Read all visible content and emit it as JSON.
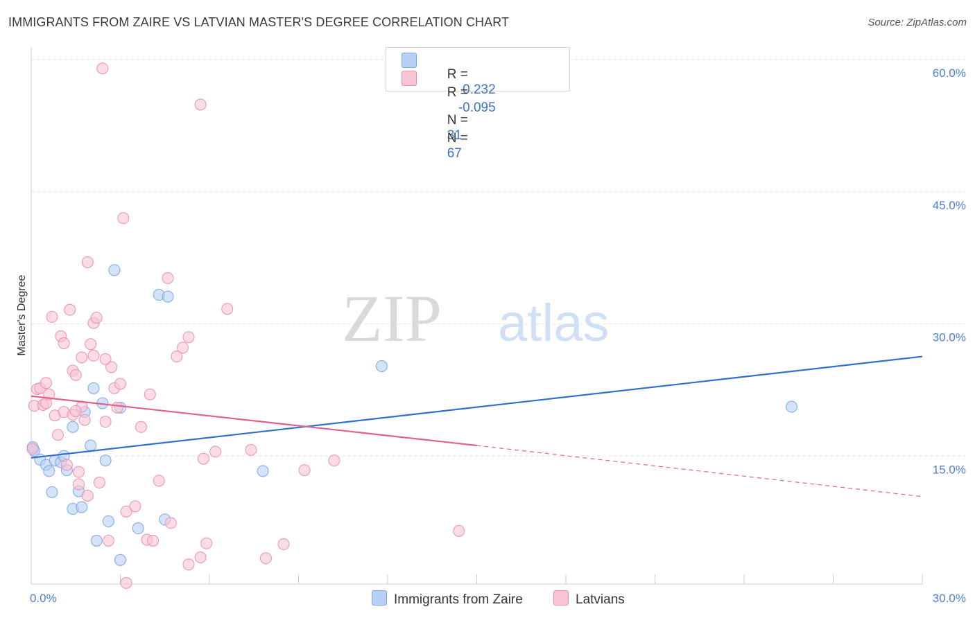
{
  "title": "IMMIGRANTS FROM ZAIRE VS LATVIAN MASTER'S DEGREE CORRELATION CHART",
  "source": "Source: ZipAtlas.com",
  "watermark": {
    "zip": "ZIP",
    "atlas": "atlas"
  },
  "legend_stats": [
    {
      "r_label": "R =",
      "r_value": "0.232",
      "n_label": "N =",
      "n_value": "31",
      "color": "#b7d0f5",
      "border": "#7aa6e6"
    },
    {
      "r_label": "R =",
      "r_value": "-0.095",
      "n_label": "N =",
      "n_value": "67",
      "color": "#f8c4d4",
      "border": "#ec8fae"
    }
  ],
  "bottom_legend": [
    {
      "label": "Immigrants from Zaire",
      "color": "#b7d0f5",
      "border": "#7aa6e6"
    },
    {
      "label": "Latvians",
      "color": "#f8c4d4",
      "border": "#ec8fae"
    }
  ],
  "chart_data": {
    "type": "scatter",
    "title": "IMMIGRANTS FROM ZAIRE VS LATVIAN MASTER'S DEGREE CORRELATION CHART",
    "xlabel": "",
    "ylabel": "Master's Degree",
    "xlim": [
      0,
      30
    ],
    "ylim": [
      0,
      60
    ],
    "x_tick_labels": [
      "0.0%",
      "30.0%"
    ],
    "y_ticks": [
      15,
      30,
      45,
      60
    ],
    "y_tick_labels": [
      "15.0%",
      "30.0%",
      "45.0%",
      "60.0%"
    ],
    "grid": true,
    "legend_position": "top-center",
    "series": [
      {
        "name": "Immigrants from Zaire",
        "color": "#7aa6e6",
        "fill": "#b7d0f5",
        "trend": {
          "x": [
            0,
            30
          ],
          "y": [
            14.8,
            26.3
          ],
          "color": "#2f6fce"
        },
        "points": [
          [
            0.1,
            15.6
          ],
          [
            0.3,
            14.6
          ],
          [
            0.5,
            14.0
          ],
          [
            0.6,
            13.3
          ],
          [
            0.7,
            10.9
          ],
          [
            0.8,
            14.5
          ],
          [
            1.0,
            14.3
          ],
          [
            1.1,
            15.0
          ],
          [
            1.2,
            13.4
          ],
          [
            1.4,
            9.0
          ],
          [
            1.4,
            18.3
          ],
          [
            1.6,
            11.0
          ],
          [
            1.7,
            9.2
          ],
          [
            1.8,
            20.0
          ],
          [
            2.0,
            16.2
          ],
          [
            2.1,
            22.7
          ],
          [
            2.2,
            5.4
          ],
          [
            2.4,
            21.0
          ],
          [
            2.5,
            14.5
          ],
          [
            2.6,
            7.6
          ],
          [
            2.8,
            36.1
          ],
          [
            3.0,
            20.5
          ],
          [
            3.0,
            3.2
          ],
          [
            3.6,
            6.8
          ],
          [
            4.3,
            33.3
          ],
          [
            4.5,
            7.8
          ],
          [
            4.6,
            33.1
          ],
          [
            7.8,
            13.3
          ],
          [
            11.8,
            25.2
          ],
          [
            25.6,
            20.6
          ],
          [
            0.05,
            16.0
          ]
        ]
      },
      {
        "name": "Latvians",
        "color": "#ec8fae",
        "fill": "#f8c4d4",
        "trend": {
          "x": [
            0,
            15
          ],
          "y": [
            21.8,
            16.2
          ],
          "color": "#e0608e",
          "dashed_x": [
            15,
            30
          ],
          "dashed_y": [
            16.2,
            10.4
          ]
        },
        "points": [
          [
            0.1,
            20.7
          ],
          [
            0.2,
            22.6
          ],
          [
            0.3,
            22.7
          ],
          [
            0.4,
            20.8
          ],
          [
            0.5,
            21.0
          ],
          [
            0.5,
            23.3
          ],
          [
            0.6,
            22.0
          ],
          [
            0.7,
            30.8
          ],
          [
            0.8,
            19.6
          ],
          [
            0.9,
            17.4
          ],
          [
            1.0,
            28.6
          ],
          [
            1.1,
            27.8
          ],
          [
            1.1,
            20.0
          ],
          [
            1.2,
            14.0
          ],
          [
            1.3,
            31.6
          ],
          [
            1.4,
            24.7
          ],
          [
            1.4,
            19.7
          ],
          [
            1.5,
            24.2
          ],
          [
            1.6,
            11.8
          ],
          [
            1.6,
            13.2
          ],
          [
            1.7,
            26.2
          ],
          [
            1.7,
            20.6
          ],
          [
            1.8,
            19.1
          ],
          [
            1.9,
            10.5
          ],
          [
            1.9,
            37.0
          ],
          [
            2.0,
            27.7
          ],
          [
            2.1,
            26.4
          ],
          [
            2.1,
            30.1
          ],
          [
            2.2,
            30.7
          ],
          [
            2.3,
            12.0
          ],
          [
            2.5,
            18.9
          ],
          [
            2.6,
            5.4
          ],
          [
            2.7,
            25.1
          ],
          [
            2.8,
            22.7
          ],
          [
            2.9,
            20.5
          ],
          [
            3.0,
            23.2
          ],
          [
            3.1,
            42.0
          ],
          [
            3.2,
            8.7
          ],
          [
            3.5,
            9.3
          ],
          [
            3.7,
            18.3
          ],
          [
            3.9,
            5.5
          ],
          [
            4.0,
            22.0
          ],
          [
            4.1,
            5.4
          ],
          [
            4.3,
            12.2
          ],
          [
            4.6,
            35.2
          ],
          [
            4.7,
            7.4
          ],
          [
            4.9,
            26.3
          ],
          [
            5.1,
            27.3
          ],
          [
            5.3,
            28.5
          ],
          [
            5.3,
            2.7
          ],
          [
            5.7,
            3.5
          ],
          [
            5.7,
            54.9
          ],
          [
            5.8,
            14.7
          ],
          [
            5.9,
            5.1
          ],
          [
            6.2,
            15.5
          ],
          [
            6.6,
            31.7
          ],
          [
            7.4,
            15.7
          ],
          [
            7.9,
            3.4
          ],
          [
            8.5,
            5.0
          ],
          [
            9.2,
            13.4
          ],
          [
            10.2,
            14.5
          ],
          [
            14.4,
            6.5
          ],
          [
            2.4,
            59.0
          ],
          [
            0.05,
            15.8
          ],
          [
            3.2,
            0.6
          ],
          [
            1.5,
            20.1
          ],
          [
            2.5,
            26.0
          ]
        ]
      }
    ]
  }
}
